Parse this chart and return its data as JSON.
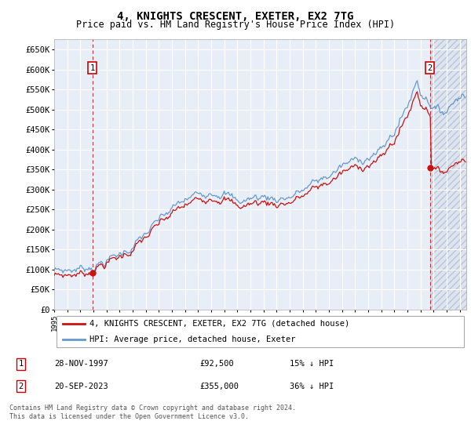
{
  "title": "4, KNIGHTS CRESCENT, EXETER, EX2 7TG",
  "subtitle": "Price paid vs. HM Land Registry's House Price Index (HPI)",
  "ylim": [
    0,
    675000
  ],
  "yticks": [
    0,
    50000,
    100000,
    150000,
    200000,
    250000,
    300000,
    350000,
    400000,
    450000,
    500000,
    550000,
    600000,
    650000
  ],
  "xlim_start": 1995.0,
  "xlim_end": 2026.5,
  "bg_color": "#e8eef8",
  "grid_color": "#ffffff",
  "hpi_color": "#6699cc",
  "price_color": "#cc1111",
  "sale1_year": 1997.91,
  "sale1_price": 92500,
  "sale2_year": 2023.72,
  "sale2_price": 355000,
  "footnote": "Contains HM Land Registry data © Crown copyright and database right 2024.\nThis data is licensed under the Open Government Licence v3.0.",
  "legend_line1": "4, KNIGHTS CRESCENT, EXETER, EX2 7TG (detached house)",
  "legend_line2": "HPI: Average price, detached house, Exeter",
  "table_row1": [
    "1",
    "28-NOV-1997",
    "£92,500",
    "15% ↓ HPI"
  ],
  "table_row2": [
    "2",
    "20-SEP-2023",
    "£355,000",
    "36% ↓ HPI"
  ]
}
